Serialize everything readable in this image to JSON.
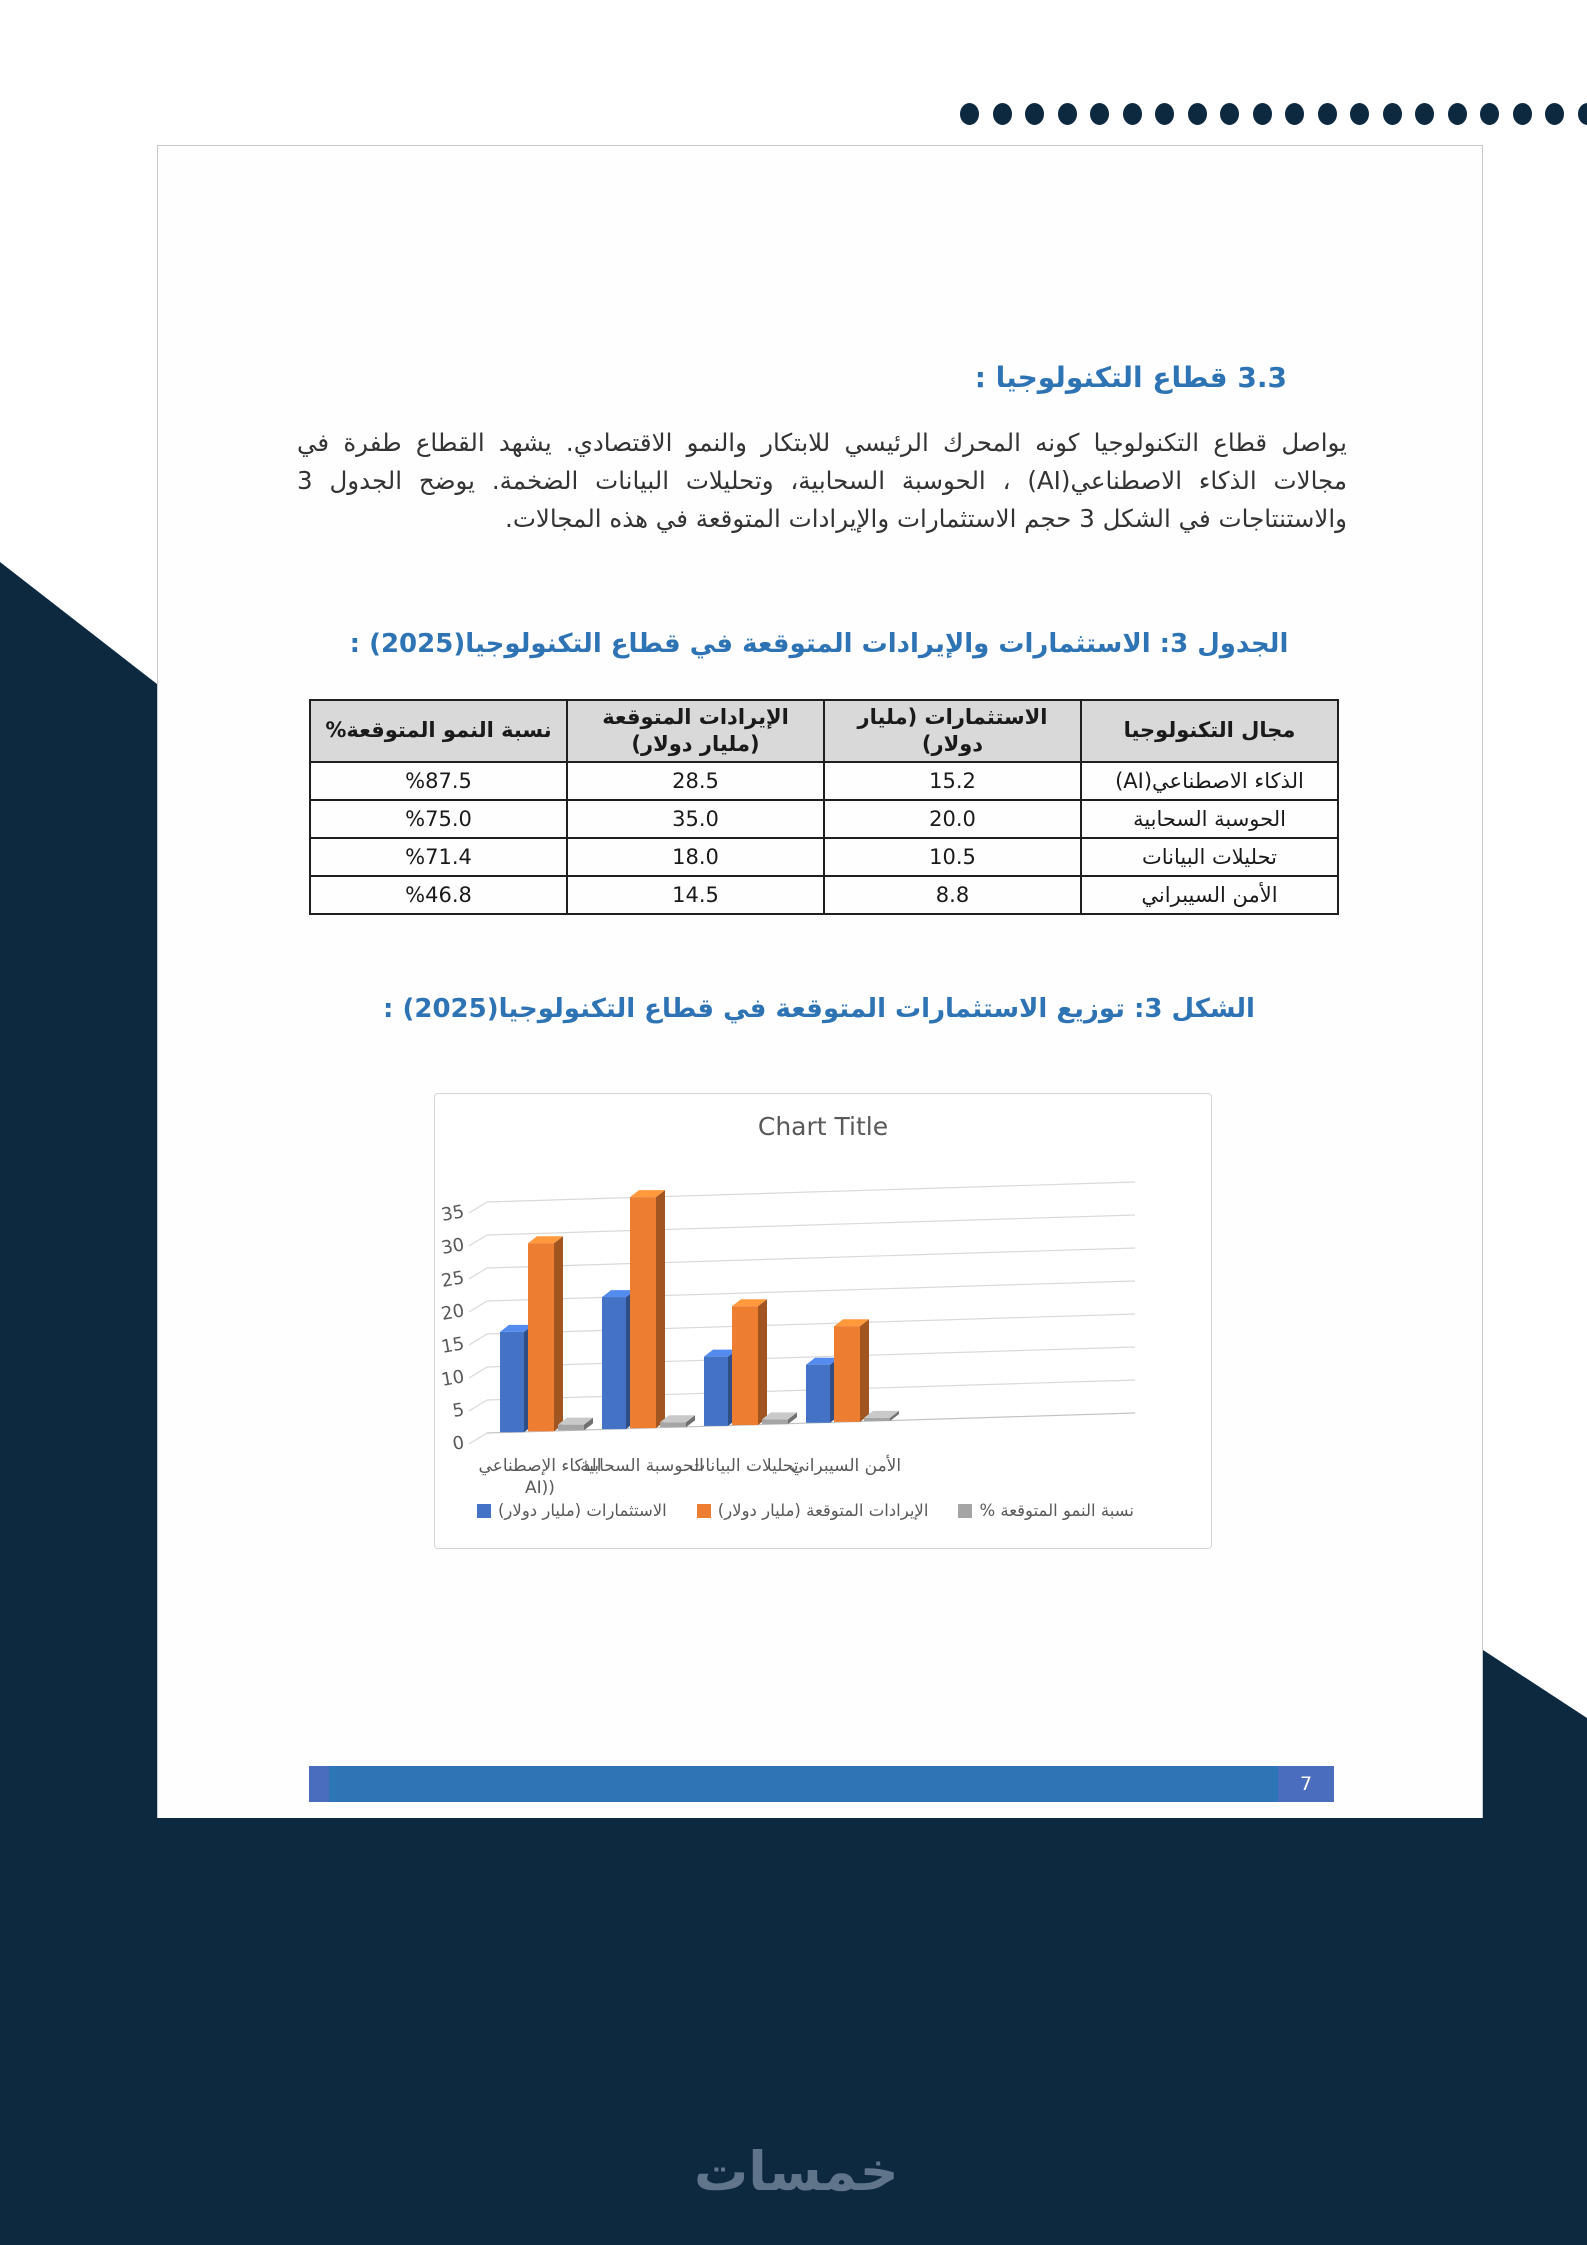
{
  "page": {
    "heading": "3.3 قطاع التكنولوجيا :",
    "paragraph": "يواصل قطاع التكنولوجيا كونه المحرك الرئيسي للابتكار والنمو الاقتصادي. يشهد القطاع طفرة في مجالات الذكاء الاصطناعي(AI) ، الحوسبة السحابية، وتحليلات البيانات الضخمة. يوضح الجدول 3 والاستنتاجات في الشكل 3 حجم الاستثمارات والإيرادات المتوقعة في هذه المجالات.",
    "table_caption": "الجدول 3: الاستثمارات والإيرادات المتوقعة في قطاع التكنولوجيا(2025) :",
    "figure_caption": "الشكل 3: توزيع الاستثمارات المتوقعة في قطاع التكنولوجيا(2025) :",
    "page_number": "7"
  },
  "table": {
    "headers": [
      "مجال التكنولوجيا",
      "الاستثمارات (مليار دولار)",
      "الإيرادات المتوقعة (مليار دولار)",
      "نسبة النمو المتوقعة%"
    ],
    "rows": [
      [
        "الذكاء الاصطناعي(AI)",
        "15.2",
        "28.5",
        "%87.5"
      ],
      [
        "الحوسبة السحابية",
        "20.0",
        "35.0",
        "%75.0"
      ],
      [
        "تحليلات البيانات",
        "10.5",
        "18.0",
        "%71.4"
      ],
      [
        "الأمن السيبراني",
        "8.8",
        "14.5",
        "%46.8"
      ]
    ]
  },
  "chart_data": {
    "type": "bar",
    "style": "3d-clustered-column",
    "title": "Chart Title",
    "categories": [
      "الذكاء الإصطناعي (AI)",
      "الحوسبة السحابية",
      "تحليلات البيانات",
      "الأمن السيبراني"
    ],
    "category_lines": [
      [
        "الذكاء الإصطناعي",
        "AI))"
      ],
      [
        "الحوسبة السحابية"
      ],
      [
        "تحليلات البيانات"
      ],
      [
        "الأمن السيبراني"
      ]
    ],
    "series": [
      {
        "name": "الاستثمارات (مليار دولار)",
        "color": "#4472c4",
        "values": [
          15.2,
          20.0,
          10.5,
          8.8
        ]
      },
      {
        "name": "الإيرادات المتوقعة (مليار دولار)",
        "color": "#ed7d31",
        "values": [
          28.5,
          35.0,
          18.0,
          14.5
        ]
      },
      {
        "name": "نسبة النمو المتوقعة %",
        "color": "#a5a5a5",
        "values": [
          0.875,
          0.75,
          0.714,
          0.468
        ]
      }
    ],
    "y_ticks": [
      0,
      5,
      10,
      15,
      20,
      25,
      30,
      35
    ],
    "ylim": [
      0,
      35
    ],
    "xlabel": "",
    "ylabel": "",
    "grid": true,
    "legend_position": "bottom"
  },
  "watermark": "خمسات",
  "colors": {
    "navy": "#0d2940",
    "accent_blue": "#2e74b5",
    "footer_bar": "#2e75b6",
    "footer_cap": "#4a6dbd",
    "page_border": "#c8c8c8",
    "text": "#333333",
    "table_header_bg": "#d9d9d9",
    "watermark": "#61758a",
    "chart_gray": "#595959"
  }
}
